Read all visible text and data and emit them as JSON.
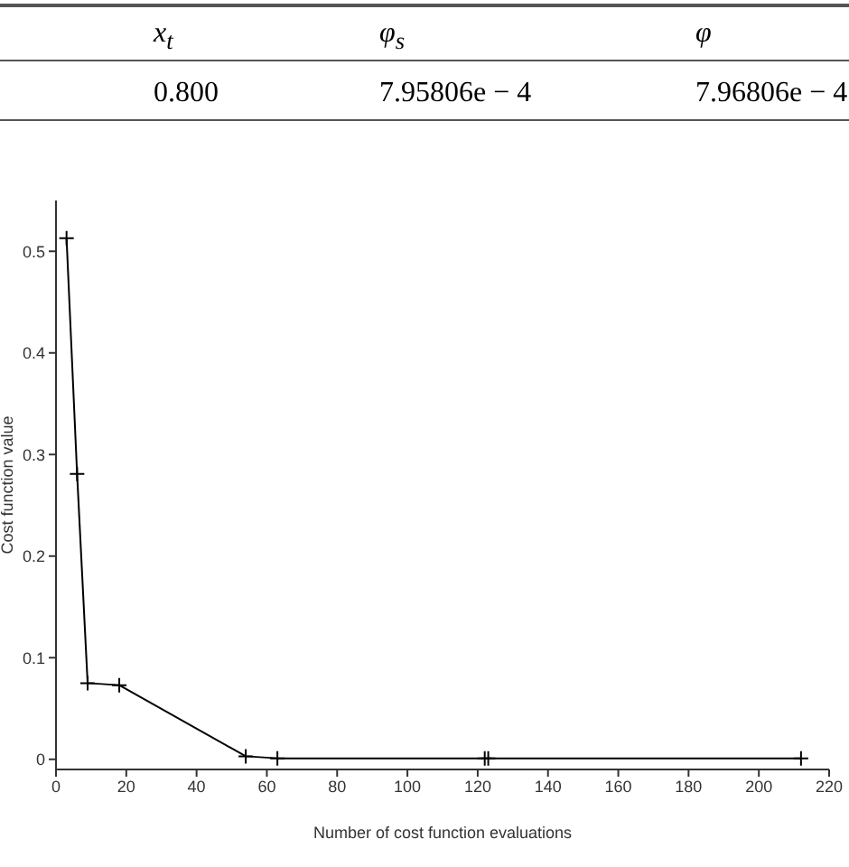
{
  "chart_data": {
    "type": "line",
    "xlabel": "Number of cost function evaluations",
    "ylabel": "Cost function value",
    "annotations": [
      "x$_{t}$",
      "φ$_{s}$",
      "φ",
      "0.800",
      "7.95806e − 4",
      "7.96806e − 4"
    ],
    "series": [
      {
        "color": "#000000",
        "x": [
          3,
          6,
          9,
          18,
          54,
          63,
          122,
          123,
          212
        ],
        "values": [
          0.513,
          0.281,
          0.075,
          0.073,
          0.003,
          0.001,
          0.001,
          0.001,
          0.001
        ]
      }
    ],
    "xlim": [
      0,
      220
    ],
    "xticks": [
      0,
      20,
      40,
      60,
      80,
      100,
      120,
      140,
      160,
      180,
      200,
      220
    ],
    "ylim": [
      -0.01,
      0.55
    ],
    "yticks": [
      0,
      0.1,
      0.2,
      0.3,
      0.4,
      0.5
    ],
    "grid": false,
    "legend": false,
    "marker": "cross",
    "line_style": "solid"
  }
}
